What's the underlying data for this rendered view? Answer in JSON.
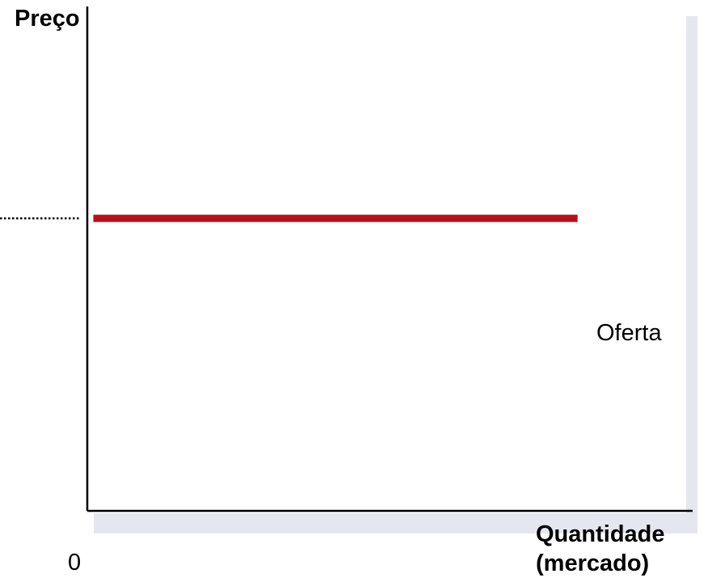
{
  "chart_data": {
    "type": "line",
    "ylabel": "Preço",
    "xlabel_line1": "Quantidade",
    "xlabel_line2": "(mercado)",
    "origin_label": "0",
    "series": [
      {
        "name": "Oferta",
        "points": [
          [
            0.01,
            0.58
          ],
          [
            0.81,
            0.58
          ]
        ]
      }
    ],
    "xlim": [
      0,
      1
    ],
    "ylim": [
      0,
      1
    ],
    "grid": false,
    "legend": "none",
    "dotted_reference_line": true,
    "colors": {
      "axis": "#000000",
      "series": "#b0121b",
      "panel_shadow": "#e4e7f0",
      "dotted_line": "#000000"
    }
  }
}
